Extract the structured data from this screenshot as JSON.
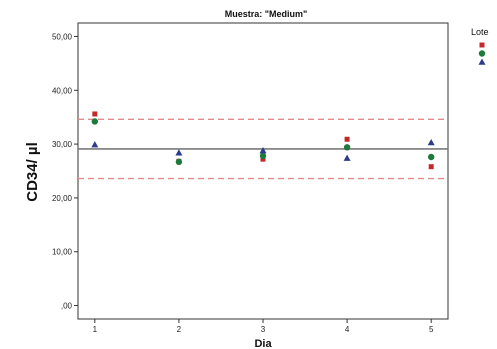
{
  "chart_data": {
    "type": "scatter",
    "title": "Muestra: \"Medium\"",
    "xlabel": "Dia",
    "ylabel": "CD34/ µl",
    "x_ticks": [
      "1",
      "2",
      "3",
      "4",
      "5"
    ],
    "y_ticks": [
      ",00",
      "10,00",
      "20,00",
      "30,00",
      "40,00",
      "50,00"
    ],
    "xlim": [
      0.8,
      5.2
    ],
    "ylim": [
      -2.5,
      52.5
    ],
    "grid": false,
    "legend": {
      "title": "Lote",
      "placement": "top-right"
    },
    "reference_lines": [
      {
        "value": 29.1,
        "style": "solid",
        "color": "#7a7a7a"
      },
      {
        "value": 34.6,
        "style": "dashed",
        "color": "#e58a8a"
      },
      {
        "value": 23.6,
        "style": "dashed",
        "color": "#e58a8a"
      }
    ],
    "series": [
      {
        "marker": "square",
        "color": "#c62828",
        "x": [
          1,
          2,
          3,
          4,
          5
        ],
        "y": [
          35.6,
          26.8,
          27.2,
          30.9,
          25.8
        ]
      },
      {
        "marker": "circle",
        "color": "#1e7a3a",
        "x": [
          1,
          2,
          3,
          4,
          5
        ],
        "y": [
          34.2,
          26.7,
          27.8,
          29.4,
          27.6
        ]
      },
      {
        "marker": "triangle",
        "color": "#2e3a8c",
        "x": [
          1,
          2,
          3,
          4,
          5
        ],
        "y": [
          29.9,
          28.4,
          28.8,
          27.4,
          30.3
        ]
      }
    ]
  }
}
